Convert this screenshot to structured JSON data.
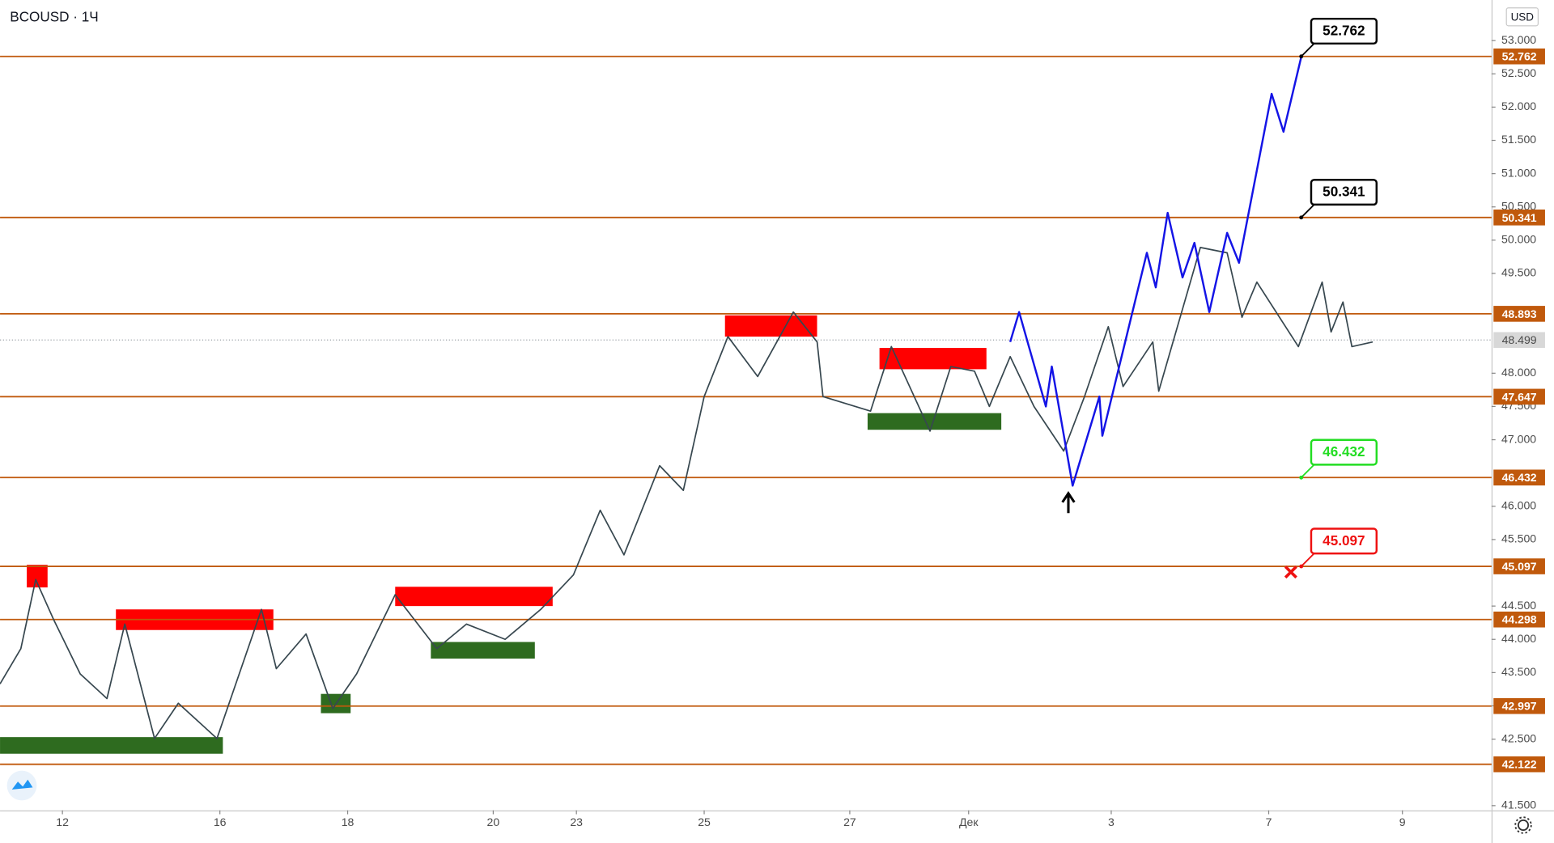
{
  "chart_data": {
    "type": "line",
    "title": "BCOUSD · 1Ч",
    "currency": "USD",
    "ylim": [
      41.43,
      53.61
    ],
    "xlim": [
      0,
      502
    ],
    "yticks": [
      {
        "value": 41.5,
        "label": "41.500"
      },
      {
        "value": 42.5,
        "label": "42.500"
      },
      {
        "value": 43,
        "label": "43.000"
      },
      {
        "value": 43.5,
        "label": "43.500"
      },
      {
        "value": 44,
        "label": "44.000"
      },
      {
        "value": 44.5,
        "label": "44.500"
      },
      {
        "value": 45.5,
        "label": "45.500"
      },
      {
        "value": 46,
        "label": "46.000"
      },
      {
        "value": 47,
        "label": "47.000"
      },
      {
        "value": 47.5,
        "label": "47.500"
      },
      {
        "value": 48,
        "label": "48.000"
      },
      {
        "value": 49.5,
        "label": "49.500"
      },
      {
        "value": 50,
        "label": "50.000"
      },
      {
        "value": 50.5,
        "label": "50.500"
      },
      {
        "value": 51,
        "label": "51.000"
      },
      {
        "value": 51.5,
        "label": "51.500"
      },
      {
        "value": 52,
        "label": "52.000"
      },
      {
        "value": 52.5,
        "label": "52.500"
      },
      {
        "value": 53,
        "label": "53.000"
      }
    ],
    "xticks": [
      {
        "value": 21,
        "label": "12"
      },
      {
        "value": 74,
        "label": "16"
      },
      {
        "value": 117,
        "label": "18"
      },
      {
        "value": 166,
        "label": "20"
      },
      {
        "value": 194,
        "label": "23"
      },
      {
        "value": 237,
        "label": "25"
      },
      {
        "value": 286,
        "label": "27"
      },
      {
        "value": 326,
        "label": "Дек"
      },
      {
        "value": 374,
        "label": "3"
      },
      {
        "value": 427,
        "label": "7"
      },
      {
        "value": 472,
        "label": "9"
      }
    ],
    "series": [
      {
        "color": "#37474f",
        "x": [
          0,
          7,
          12,
          18,
          27,
          36,
          42,
          52,
          60,
          73,
          88,
          93,
          103,
          112,
          120,
          133,
          147,
          157,
          170,
          182,
          193,
          202,
          210,
          222,
          230,
          237,
          245,
          255,
          267,
          275,
          277,
          293,
          300,
          313,
          320,
          328,
          333,
          340,
          348,
          358,
          365,
          373,
          378,
          388,
          390,
          404,
          413,
          418,
          423,
          437,
          445,
          448,
          452,
          455,
          462
        ],
        "values": [
          43.33,
          43.86,
          44.9,
          44.3,
          43.48,
          43.11,
          44.23,
          42.51,
          43.04,
          42.51,
          44.45,
          43.56,
          44.08,
          42.96,
          43.48,
          44.67,
          43.86,
          44.23,
          44.0,
          44.45,
          44.97,
          45.94,
          45.27,
          46.61,
          46.24,
          47.65,
          48.55,
          47.95,
          48.92,
          48.47,
          47.65,
          47.43,
          48.4,
          47.13,
          48.1,
          48.03,
          47.5,
          48.25,
          47.5,
          46.83,
          47.65,
          48.7,
          47.8,
          48.47,
          47.73,
          49.89,
          49.81,
          48.84,
          49.37,
          48.4,
          49.37,
          48.62,
          49.07,
          48.4,
          48.47
        ]
      },
      {
        "color": "#1414e6",
        "x": [
          340,
          343,
          352,
          354,
          361,
          370,
          371,
          386,
          389,
          393,
          398,
          402,
          407,
          413,
          417,
          428,
          432,
          438
        ],
        "values": [
          48.47,
          48.92,
          47.5,
          48.1,
          46.31,
          47.65,
          47.06,
          49.81,
          49.29,
          50.41,
          49.44,
          49.96,
          48.92,
          50.11,
          49.66,
          52.2,
          51.63,
          52.762
        ]
      }
    ],
    "levels": [
      52.762,
      50.341,
      48.893,
      47.647,
      46.432,
      45.097,
      44.298,
      42.997,
      42.122
    ],
    "level_color": "#c0590c",
    "last_price": 48.499,
    "targets": [
      {
        "value": 52.762,
        "color": "#000000"
      },
      {
        "value": 50.341,
        "color": "#000000"
      },
      {
        "value": 46.432,
        "color": "#22dd22"
      },
      {
        "value": 45.097,
        "color": "#ee1111"
      }
    ],
    "zones": [
      {
        "x": [
          9,
          16
        ],
        "y": [
          44.78,
          45.12
        ],
        "color": "#ff0000"
      },
      {
        "x": [
          39,
          92
        ],
        "y": [
          44.14,
          44.45
        ],
        "color": "#ff0000"
      },
      {
        "x": [
          133,
          186
        ],
        "y": [
          44.5,
          44.79
        ],
        "color": "#ff0000"
      },
      {
        "x": [
          244,
          275
        ],
        "y": [
          48.55,
          48.87
        ],
        "color": "#ff0000"
      },
      {
        "x": [
          296,
          332
        ],
        "y": [
          48.06,
          48.38
        ],
        "color": "#ff0000"
      },
      {
        "x": [
          0,
          75
        ],
        "y": [
          42.28,
          42.53
        ],
        "color": "#2e6b1f"
      },
      {
        "x": [
          108,
          118
        ],
        "y": [
          42.89,
          43.18
        ],
        "color": "#2e6b1f"
      },
      {
        "x": [
          145,
          180
        ],
        "y": [
          43.71,
          43.96
        ],
        "color": "#2e6b1f"
      },
      {
        "x": [
          292,
          337
        ],
        "y": [
          47.15,
          47.4
        ],
        "color": "#2e6b1f"
      }
    ]
  }
}
